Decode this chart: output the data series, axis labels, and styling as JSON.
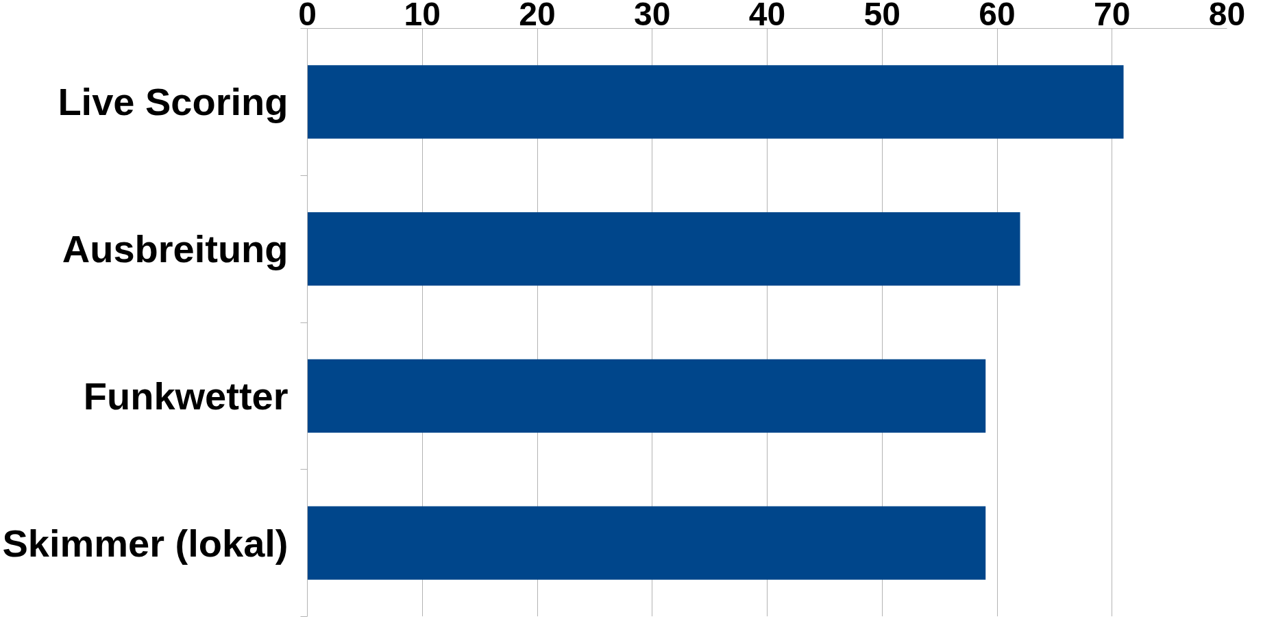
{
  "chart_data": {
    "type": "bar",
    "orientation": "horizontal",
    "categories": [
      "Live Scoring",
      "Ausbreitung",
      "Funkwetter",
      "Skimmer (lokal)"
    ],
    "values": [
      71,
      62,
      59,
      59
    ],
    "color": "#00468b",
    "xlim": [
      0,
      80
    ],
    "xticks": [
      0,
      10,
      20,
      30,
      40,
      50,
      60,
      70,
      80
    ],
    "grid": "x"
  }
}
